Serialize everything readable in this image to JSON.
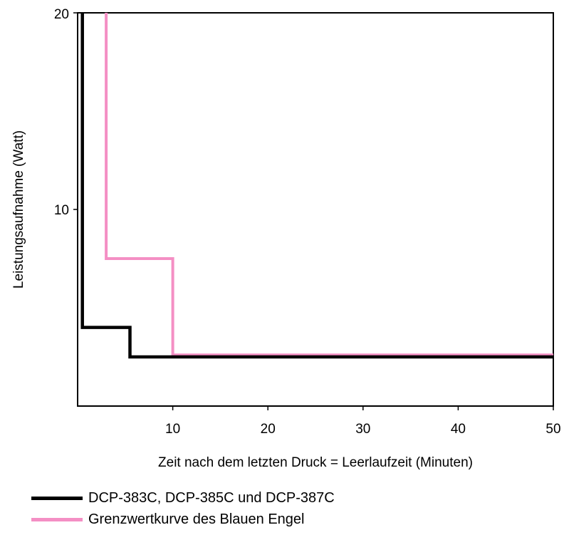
{
  "chart_data": {
    "type": "line",
    "xlabel": "Zeit nach dem letzten Druck = Leerlaufzeit (Minuten)",
    "ylabel": "Leistungsaufnahme (Watt)",
    "xlim": [
      0,
      50
    ],
    "ylim": [
      0,
      20
    ],
    "x_ticks": [
      10,
      20,
      30,
      40,
      50
    ],
    "y_ticks": [
      10,
      20
    ],
    "grid": false,
    "legend_position": "bottom-left",
    "series": [
      {
        "name": "DCP-383C, DCP-385C und DCP-387C",
        "color": "#000000",
        "step": true,
        "x": [
          0.5,
          0.5,
          5.5,
          5.5,
          50
        ],
        "y": [
          20,
          4,
          4,
          2.5,
          2.5
        ]
      },
      {
        "name": "Grenzwertkurve des Blauen Engel",
        "color": "#f48fc4",
        "step": true,
        "x": [
          3,
          3,
          10,
          10,
          50
        ],
        "y": [
          20,
          7.5,
          7.5,
          2.6,
          2.6
        ]
      }
    ]
  }
}
